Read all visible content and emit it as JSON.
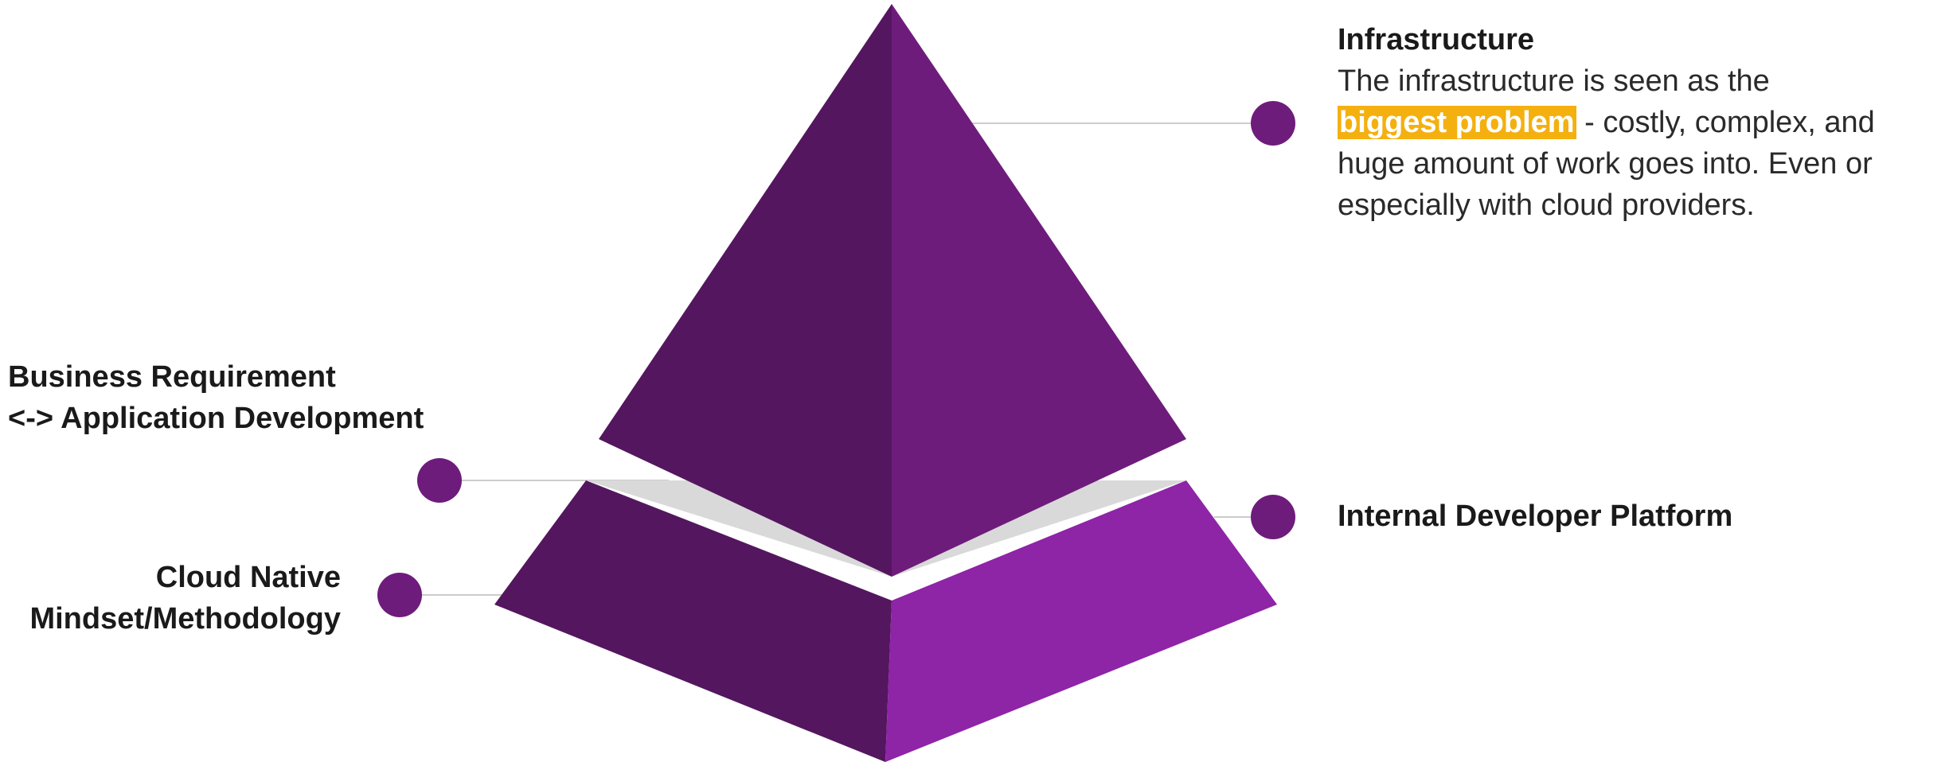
{
  "colors": {
    "top_left_face": "#54165f",
    "top_right_face": "#6e1c7b",
    "band": "#d9d9d9",
    "bottom_left_face": "#54165f",
    "bottom_right_face": "#8e24a6",
    "marker": "#6e1c7b",
    "connector": "#cccccc",
    "highlight": "#f4b00f"
  },
  "labels": {
    "infrastructure": {
      "title": "Infrastructure",
      "desc_line1": "The infrastructure is seen as the",
      "highlight": "biggest problem",
      "desc_rest": " - costly, complex, and huge amount of work goes into. Even or especially with cloud providers."
    },
    "business": {
      "line1": "Business Requirement",
      "line2": "<-> Application Development"
    },
    "cloud_native": {
      "line1": "Cloud Native",
      "line2": "Mindset/Methodology"
    },
    "platform": {
      "title": "Internal Developer Platform"
    }
  }
}
